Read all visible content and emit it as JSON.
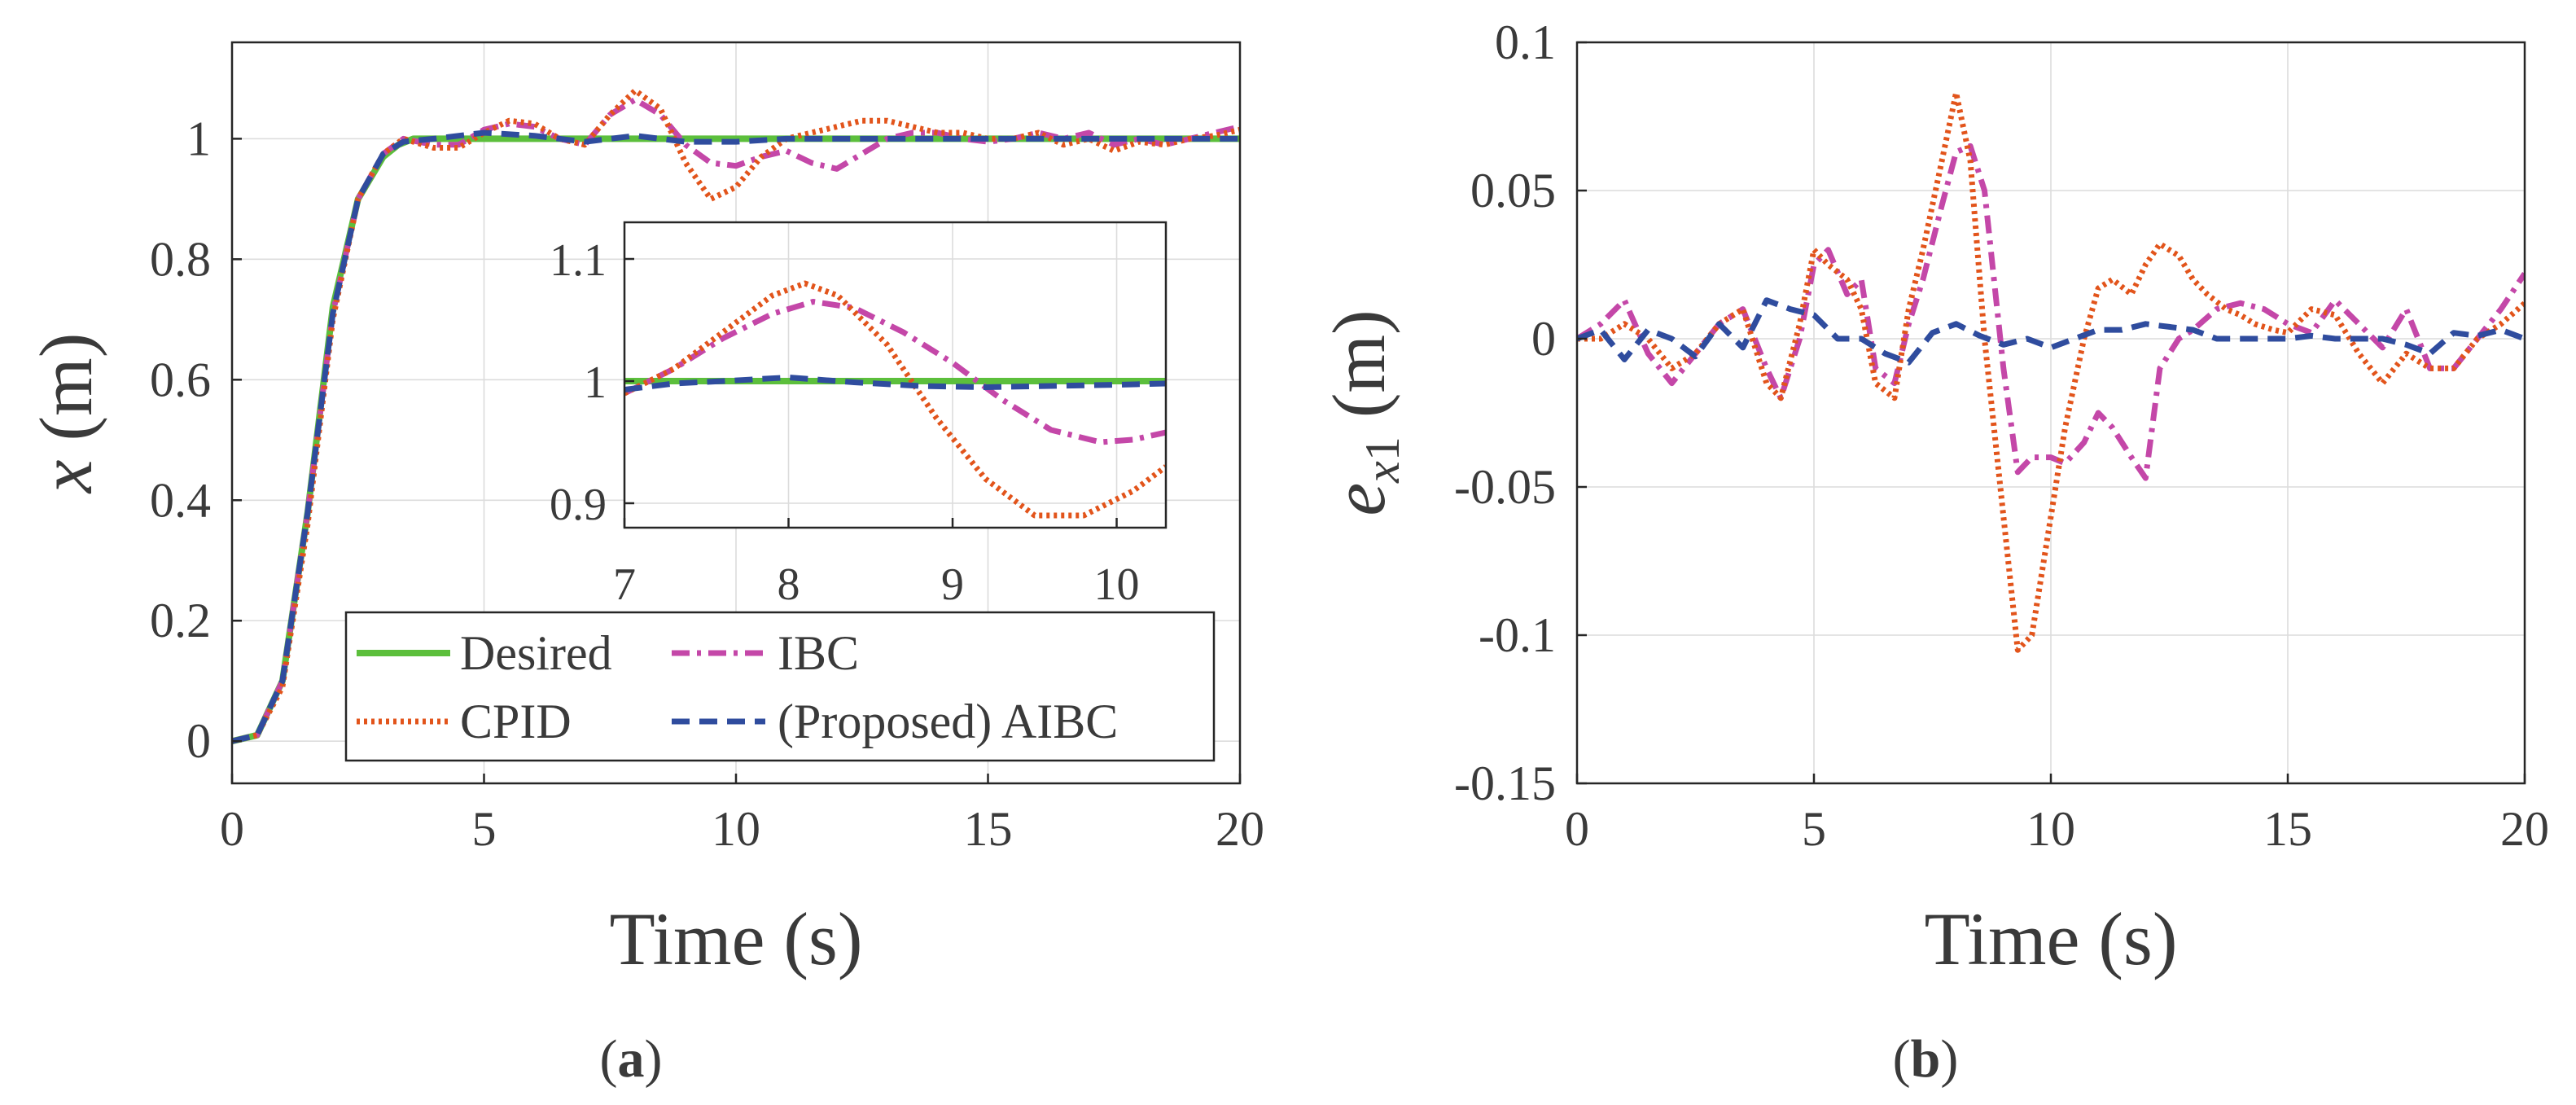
{
  "colors": {
    "Desired": "#5cbf3c",
    "CPID": "#e2541b",
    "IBC": "#c447a8",
    "AIBC": "#2f4c9e"
  },
  "legend_labels": {
    "Desired": "Desired",
    "CPID": "CPID",
    "IBC": "IBC",
    "AIBC": "(Proposed) AIBC"
  },
  "chart_data": [
    {
      "id": "a",
      "type": "line",
      "panel_label": "(a)",
      "title": "",
      "xlabel": "Time (s)",
      "ylabel": "x (m)",
      "xlim": [
        0,
        20
      ],
      "ylim": [
        -0.07,
        1.16
      ],
      "xticks": [
        0,
        5,
        10,
        15,
        20
      ],
      "yticks": [
        0,
        0.2,
        0.4,
        0.6,
        0.8,
        1
      ],
      "ytick_labels": [
        "0",
        "0.2",
        "0.4",
        "0.6",
        "0.8",
        "1"
      ],
      "grid": true,
      "legend": "lower-right",
      "series": [
        {
          "name": "Desired",
          "x": [
            0,
            0.5,
            1.0,
            1.5,
            2.0,
            2.5,
            3.0,
            3.3,
            3.6,
            20
          ],
          "y": [
            0,
            0.01,
            0.1,
            0.38,
            0.72,
            0.9,
            0.97,
            0.99,
            1.0,
            1.0
          ]
        },
        {
          "name": "CPID",
          "x": [
            0,
            0.5,
            1.0,
            1.5,
            2.0,
            2.5,
            3.0,
            3.4,
            4.0,
            4.5,
            5.0,
            5.5,
            6.0,
            6.5,
            7.0,
            7.5,
            8.0,
            8.5,
            9.0,
            9.5,
            10.0,
            10.5,
            11.0,
            11.5,
            12.0,
            12.5,
            13.0,
            13.5,
            14.0,
            14.5,
            15.0,
            15.5,
            16.0,
            16.5,
            17.0,
            17.5,
            18.0,
            18.5,
            19.0,
            19.5,
            20.0
          ],
          "y": [
            0,
            0.01,
            0.09,
            0.36,
            0.7,
            0.9,
            0.975,
            1.0,
            0.985,
            0.985,
            1.01,
            1.03,
            1.025,
            1.0,
            0.99,
            1.04,
            1.08,
            1.05,
            0.96,
            0.9,
            0.92,
            0.97,
            1.0,
            1.01,
            1.02,
            1.03,
            1.03,
            1.02,
            1.01,
            1.01,
            1.0,
            1.0,
            1.01,
            0.99,
            1.0,
            0.98,
            0.995,
            0.99,
            1.0,
            1.005,
            1.015
          ]
        },
        {
          "name": "IBC",
          "x": [
            0,
            0.5,
            1.0,
            1.5,
            2.0,
            2.5,
            3.0,
            3.4,
            4.0,
            4.5,
            5.0,
            5.5,
            6.0,
            6.5,
            7.0,
            7.5,
            8.0,
            8.5,
            9.0,
            9.5,
            10.0,
            10.5,
            11.0,
            11.5,
            12.0,
            12.5,
            13.0,
            13.5,
            14.0,
            14.5,
            15.0,
            15.5,
            16.0,
            16.5,
            17.0,
            17.5,
            18.0,
            18.5,
            19.0,
            19.5,
            20.0
          ],
          "y": [
            0,
            0.01,
            0.1,
            0.38,
            0.71,
            0.9,
            0.975,
            1.0,
            0.99,
            0.99,
            1.015,
            1.025,
            1.02,
            1.0,
            0.99,
            1.04,
            1.065,
            1.04,
            0.99,
            0.96,
            0.955,
            0.97,
            0.98,
            0.96,
            0.95,
            0.975,
            1.0,
            1.01,
            1.01,
            1.0,
            0.995,
            1.0,
            1.01,
            1.0,
            1.01,
            0.99,
            1.0,
            0.99,
            1.0,
            1.01,
            1.02
          ]
        },
        {
          "name": "AIBC",
          "x": [
            0,
            0.5,
            1.0,
            1.5,
            2.0,
            2.5,
            3.0,
            3.4,
            4.0,
            5.0,
            6.0,
            7.0,
            8.0,
            9.0,
            10.0,
            11.0,
            12.0,
            13.0,
            14.0,
            15.0,
            16.0,
            17.0,
            18.0,
            19.0,
            20.0
          ],
          "y": [
            0,
            0.01,
            0.1,
            0.38,
            0.71,
            0.9,
            0.975,
            0.995,
            1.0,
            1.01,
            1.005,
            0.995,
            1.005,
            0.995,
            0.995,
            1.0,
            1.0,
            1.0,
            1.0,
            1.0,
            1.0,
            1.0,
            1.0,
            1.0,
            1.0
          ]
        }
      ],
      "inset": {
        "xlim": [
          7,
          10.3
        ],
        "ylim": [
          0.88,
          1.13
        ],
        "xticks": [
          7,
          8,
          9,
          10
        ],
        "yticks": [
          0.9,
          1,
          1.1
        ],
        "ytick_labels": [
          "0.9",
          "1",
          "1.1"
        ],
        "series": [
          {
            "name": "Desired",
            "x": [
              7,
              10.3
            ],
            "y": [
              1.0,
              1.0
            ]
          },
          {
            "name": "CPID",
            "x": [
              7,
              7.3,
              7.6,
              7.9,
              8.1,
              8.3,
              8.6,
              8.9,
              9.2,
              9.5,
              9.8,
              10.1,
              10.3
            ],
            "y": [
              0.99,
              1.01,
              1.04,
              1.07,
              1.08,
              1.07,
              1.03,
              0.97,
              0.92,
              0.89,
              0.89,
              0.91,
              0.93
            ]
          },
          {
            "name": "IBC",
            "x": [
              7,
              7.3,
              7.6,
              7.9,
              8.15,
              8.4,
              8.7,
              9.0,
              9.3,
              9.6,
              9.9,
              10.1,
              10.3
            ],
            "y": [
              0.99,
              1.01,
              1.035,
              1.055,
              1.065,
              1.06,
              1.04,
              1.015,
              0.985,
              0.96,
              0.95,
              0.952,
              0.958
            ]
          },
          {
            "name": "AIBC",
            "x": [
              7,
              7.3,
              7.6,
              8.0,
              8.4,
              8.8,
              9.2,
              9.6,
              10.0,
              10.3
            ],
            "y": [
              0.993,
              0.998,
              1.0,
              1.003,
              0.999,
              0.996,
              0.995,
              0.996,
              0.997,
              0.998
            ]
          }
        ]
      }
    },
    {
      "id": "b",
      "type": "line",
      "panel_label": "(b)",
      "title": "",
      "xlabel": "Time (s)",
      "ylabel": "e_x1 (m)",
      "xlim": [
        0,
        20
      ],
      "ylim": [
        -0.15,
        0.1
      ],
      "xticks": [
        0,
        5,
        10,
        15,
        20
      ],
      "yticks": [
        -0.15,
        -0.1,
        -0.05,
        0,
        0.05,
        0.1
      ],
      "ytick_labels": [
        "-0.15",
        "-0.1",
        "-0.05",
        "0",
        "0.05",
        "0.1"
      ],
      "grid": true,
      "series": [
        {
          "name": "CPID",
          "x": [
            0,
            0.5,
            1.0,
            1.5,
            2.0,
            2.5,
            3.0,
            3.5,
            4.0,
            4.3,
            4.7,
            5.0,
            5.3,
            5.7,
            6.0,
            6.3,
            6.7,
            7.0,
            7.3,
            7.7,
            8.0,
            8.3,
            8.6,
            9.0,
            9.3,
            9.6,
            10.0,
            10.3,
            10.7,
            11.0,
            11.3,
            11.7,
            12.0,
            12.3,
            12.7,
            13.0,
            13.3,
            13.7,
            14.0,
            14.3,
            14.7,
            15.0,
            15.5,
            16.0,
            16.5,
            17.0,
            17.5,
            18.0,
            18.5,
            19.0,
            19.5,
            20.0
          ],
          "y": [
            0,
            0,
            0.005,
            0,
            -0.01,
            -0.005,
            0.005,
            0.01,
            -0.015,
            -0.02,
            0.005,
            0.03,
            0.025,
            0.02,
            0.01,
            -0.015,
            -0.02,
            0.01,
            0.03,
            0.06,
            0.083,
            0.06,
            0.0,
            -0.06,
            -0.105,
            -0.1,
            -0.06,
            -0.03,
            0.0,
            0.017,
            0.02,
            0.015,
            0.025,
            0.032,
            0.028,
            0.02,
            0.015,
            0.01,
            0.008,
            0.005,
            0.003,
            0.002,
            0.01,
            0.008,
            -0.005,
            -0.015,
            -0.005,
            -0.01,
            -0.01,
            0.0,
            0.005,
            0.012
          ]
        },
        {
          "name": "IBC",
          "x": [
            0,
            0.5,
            1.0,
            1.5,
            2.0,
            2.5,
            3.0,
            3.5,
            4.0,
            4.3,
            4.7,
            5.0,
            5.3,
            5.7,
            6.0,
            6.3,
            6.7,
            7.0,
            7.3,
            7.7,
            8.0,
            8.3,
            8.6,
            9.0,
            9.3,
            9.6,
            10.0,
            10.3,
            10.7,
            11.0,
            11.3,
            11.7,
            12.0,
            12.3,
            12.7,
            13.0,
            13.5,
            14.0,
            14.5,
            15.0,
            15.5,
            16.0,
            16.5,
            17.0,
            17.5,
            18.0,
            18.5,
            19.0,
            19.5,
            20.0
          ],
          "y": [
            0,
            0.005,
            0.013,
            -0.005,
            -0.015,
            -0.005,
            0.005,
            0.01,
            -0.01,
            -0.02,
            0.0,
            0.025,
            0.03,
            0.015,
            0.02,
            -0.01,
            -0.015,
            0.005,
            0.02,
            0.045,
            0.063,
            0.065,
            0.05,
            -0.01,
            -0.045,
            -0.04,
            -0.04,
            -0.042,
            -0.035,
            -0.025,
            -0.03,
            -0.04,
            -0.047,
            -0.01,
            0.0,
            0.003,
            0.01,
            0.012,
            0.01,
            0.005,
            0.002,
            0.013,
            0.005,
            -0.003,
            0.01,
            -0.01,
            -0.01,
            0.0,
            0.01,
            0.022
          ]
        },
        {
          "name": "AIBC",
          "x": [
            0,
            0.5,
            1.0,
            1.5,
            2.0,
            2.5,
            3.0,
            3.5,
            4.0,
            4.5,
            5.0,
            5.5,
            6.0,
            6.5,
            7.0,
            7.5,
            8.0,
            8.5,
            9.0,
            9.5,
            10.0,
            10.5,
            11.0,
            11.5,
            12.0,
            12.5,
            13.0,
            13.5,
            14.0,
            14.5,
            15.0,
            15.5,
            16.0,
            16.5,
            17.0,
            17.5,
            18.0,
            18.5,
            19.0,
            19.5,
            20.0
          ],
          "y": [
            0,
            0.003,
            -0.007,
            0.003,
            0.0,
            -0.006,
            0.005,
            -0.003,
            0.013,
            0.01,
            0.008,
            0.0,
            0.0,
            -0.005,
            -0.008,
            0.002,
            0.005,
            0.001,
            -0.002,
            0.0,
            -0.003,
            0.0,
            0.003,
            0.003,
            0.005,
            0.004,
            0.003,
            0.0,
            0.0,
            0.0,
            0.0,
            0.001,
            0.0,
            0.0,
            0.0,
            -0.002,
            -0.005,
            0.002,
            0.001,
            0.003,
            0.0
          ]
        }
      ]
    }
  ]
}
